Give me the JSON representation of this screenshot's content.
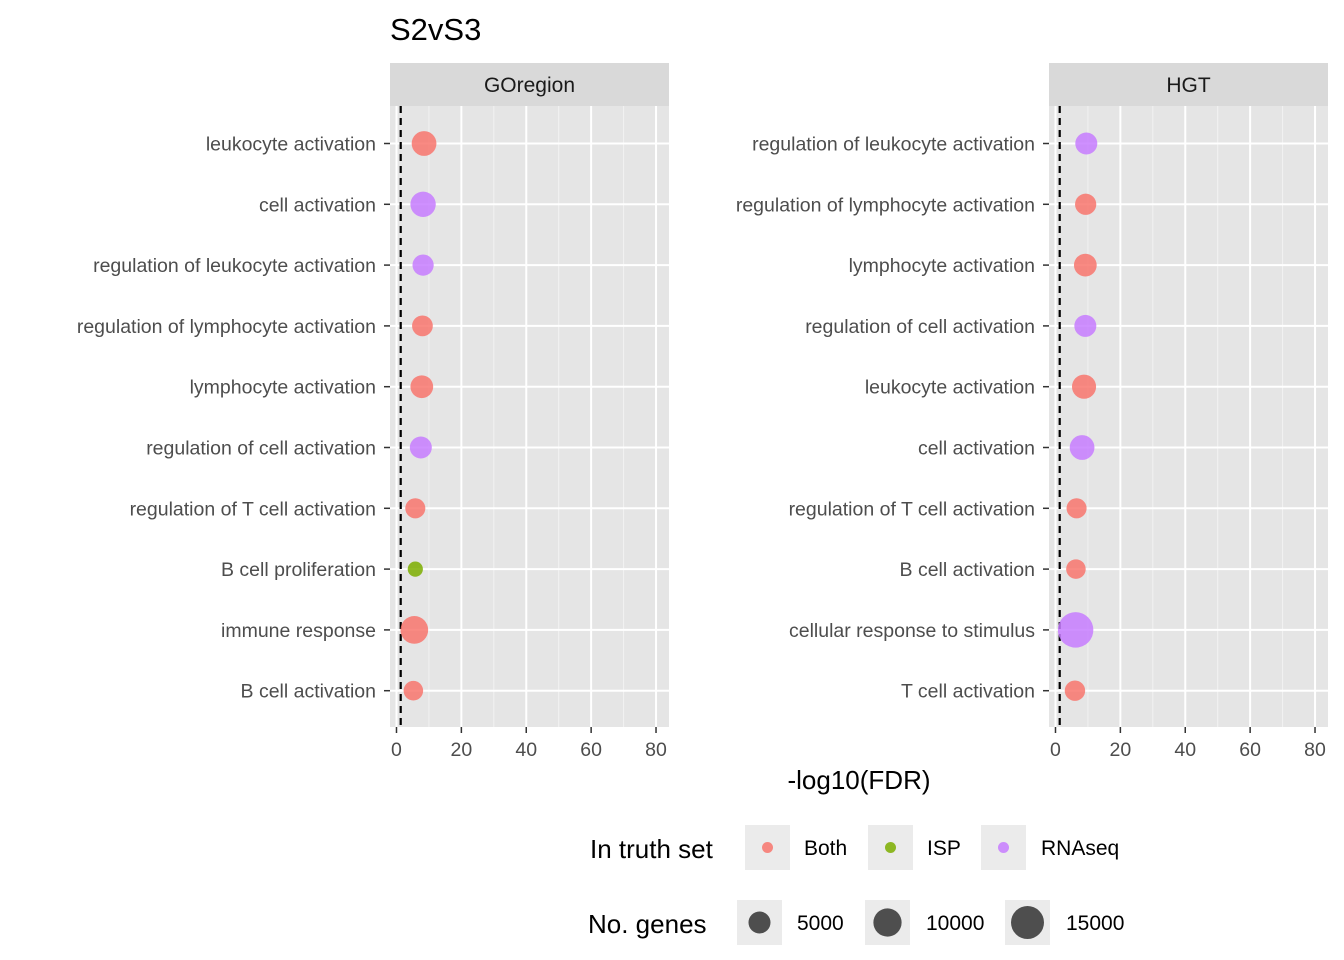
{
  "chart_data": {
    "type": "scatter",
    "title": "S2vS3",
    "xlabel": "-log10(FDR)",
    "xlim": [
      -2,
      84
    ],
    "xticks": [
      0,
      20,
      40,
      60,
      80
    ],
    "reference_line": {
      "x": 1.3,
      "style": "dashed",
      "color": "#000000"
    },
    "grid": true,
    "legend_position": "bottom",
    "colors": {
      "Both": "#f8766d",
      "ISP": "#7cae00",
      "RNAseq": "#c77cff"
    },
    "facets": [
      {
        "name": "GOregion",
        "points": [
          {
            "term": "leukocyte activation",
            "x": 8.5,
            "truth": "Both",
            "genes": 7000
          },
          {
            "term": "cell activation",
            "x": 8.2,
            "truth": "RNAseq",
            "genes": 7500
          },
          {
            "term": "regulation of leukocyte activation",
            "x": 8.2,
            "truth": "RNAseq",
            "genes": 4500
          },
          {
            "term": "regulation of lymphocyte activation",
            "x": 8.0,
            "truth": "Both",
            "genes": 4200
          },
          {
            "term": "lymphocyte activation",
            "x": 7.8,
            "truth": "Both",
            "genes": 5500
          },
          {
            "term": "regulation of cell activation",
            "x": 7.5,
            "truth": "RNAseq",
            "genes": 5000
          },
          {
            "term": "regulation of T cell activation",
            "x": 5.8,
            "truth": "Both",
            "genes": 3800
          },
          {
            "term": "B cell proliferation",
            "x": 5.8,
            "truth": "ISP",
            "genes": 1500
          },
          {
            "term": "immune response",
            "x": 5.5,
            "truth": "Both",
            "genes": 9500
          },
          {
            "term": "B cell activation",
            "x": 5.2,
            "truth": "Both",
            "genes": 3500
          }
        ]
      },
      {
        "name": "HGT",
        "points": [
          {
            "term": "regulation of leukocyte activation",
            "x": 9.5,
            "truth": "RNAseq",
            "genes": 5000
          },
          {
            "term": "regulation of lymphocyte activation",
            "x": 9.3,
            "truth": "Both",
            "genes": 4500
          },
          {
            "term": "lymphocyte activation",
            "x": 9.2,
            "truth": "Both",
            "genes": 5500
          },
          {
            "term": "regulation of cell activation",
            "x": 9.2,
            "truth": "RNAseq",
            "genes": 5000
          },
          {
            "term": "leukocyte activation",
            "x": 8.8,
            "truth": "Both",
            "genes": 6500
          },
          {
            "term": "cell activation",
            "x": 8.2,
            "truth": "RNAseq",
            "genes": 7000
          },
          {
            "term": "regulation of T cell activation",
            "x": 6.5,
            "truth": "Both",
            "genes": 3800
          },
          {
            "term": "B cell activation",
            "x": 6.3,
            "truth": "Both",
            "genes": 3500
          },
          {
            "term": "cellular response to stimulus",
            "x": 6.2,
            "truth": "RNAseq",
            "genes": 18000
          },
          {
            "term": "T cell activation",
            "x": 6.0,
            "truth": "Both",
            "genes": 4000
          }
        ]
      }
    ],
    "legend": {
      "color_title": "In truth set",
      "color_items": [
        "Both",
        "ISP",
        "RNAseq"
      ],
      "size_title": "No. genes",
      "size_items": [
        {
          "label": "5000",
          "value": 5000
        },
        {
          "label": "10000",
          "value": 10000
        },
        {
          "label": "15000",
          "value": 15000
        }
      ]
    }
  }
}
